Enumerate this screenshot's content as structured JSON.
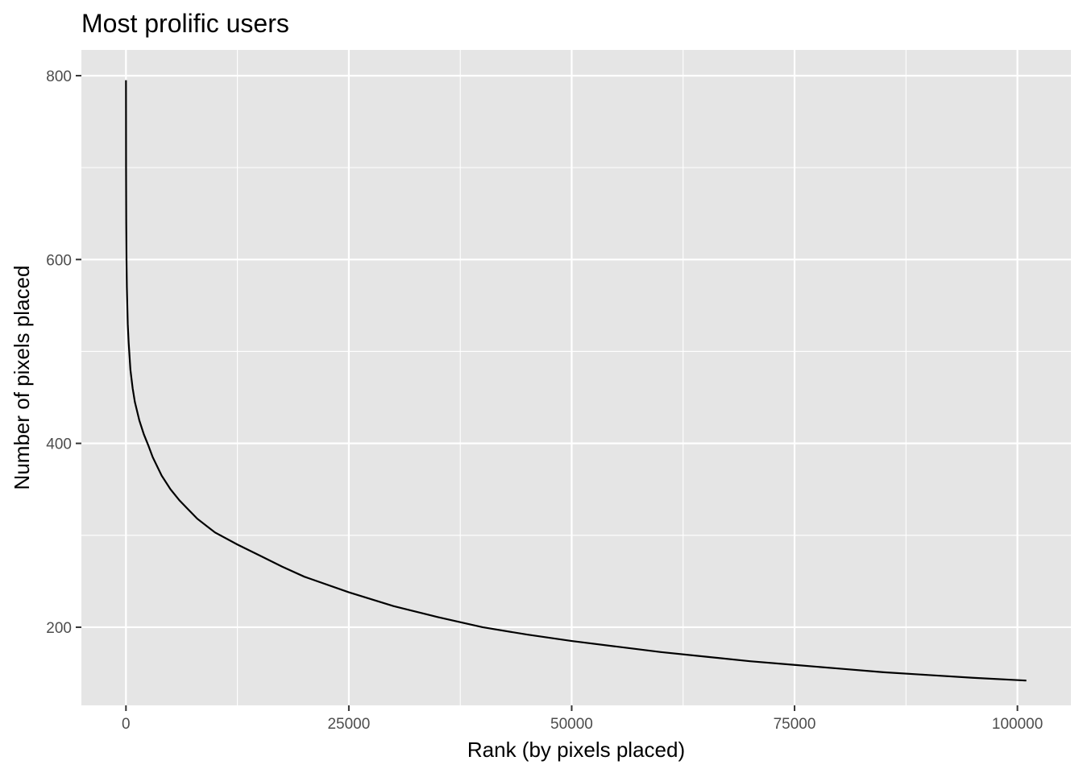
{
  "chart_data": {
    "type": "line",
    "title": "Most prolific users",
    "xlabel": "Rank (by pixels placed)",
    "ylabel": "Number of pixels placed",
    "xlim": [
      -5000,
      106000
    ],
    "ylim": [
      115,
      828
    ],
    "x_ticks": [
      0,
      25000,
      50000,
      75000,
      100000
    ],
    "x_minor_ticks": [
      12500,
      37500,
      62500,
      87500
    ],
    "y_ticks": [
      200,
      400,
      600,
      800
    ],
    "y_minor_ticks": [
      300,
      500,
      700
    ],
    "grid": true,
    "background": "#e5e5e5",
    "line_color": "#000000",
    "series": [
      {
        "x": [
          1,
          10,
          30,
          60,
          100,
          200,
          300,
          500,
          750,
          1000,
          1500,
          2000,
          2500,
          3000,
          4000,
          5000,
          6000,
          7000,
          8000,
          10000,
          12500,
          15000,
          17500,
          20000,
          25000,
          30000,
          35000,
          40000,
          45000,
          50000,
          55000,
          60000,
          65000,
          70000,
          75000,
          80000,
          85000,
          90000,
          95000,
          101000
        ],
        "values": [
          795,
          700,
          640,
          600,
          570,
          530,
          510,
          480,
          460,
          445,
          425,
          410,
          398,
          385,
          365,
          350,
          338,
          328,
          318,
          303,
          290,
          278,
          266,
          255,
          238,
          223,
          211,
          200,
          192,
          185,
          179,
          173,
          168,
          163,
          159,
          155,
          151,
          148,
          145,
          142
        ]
      }
    ]
  }
}
